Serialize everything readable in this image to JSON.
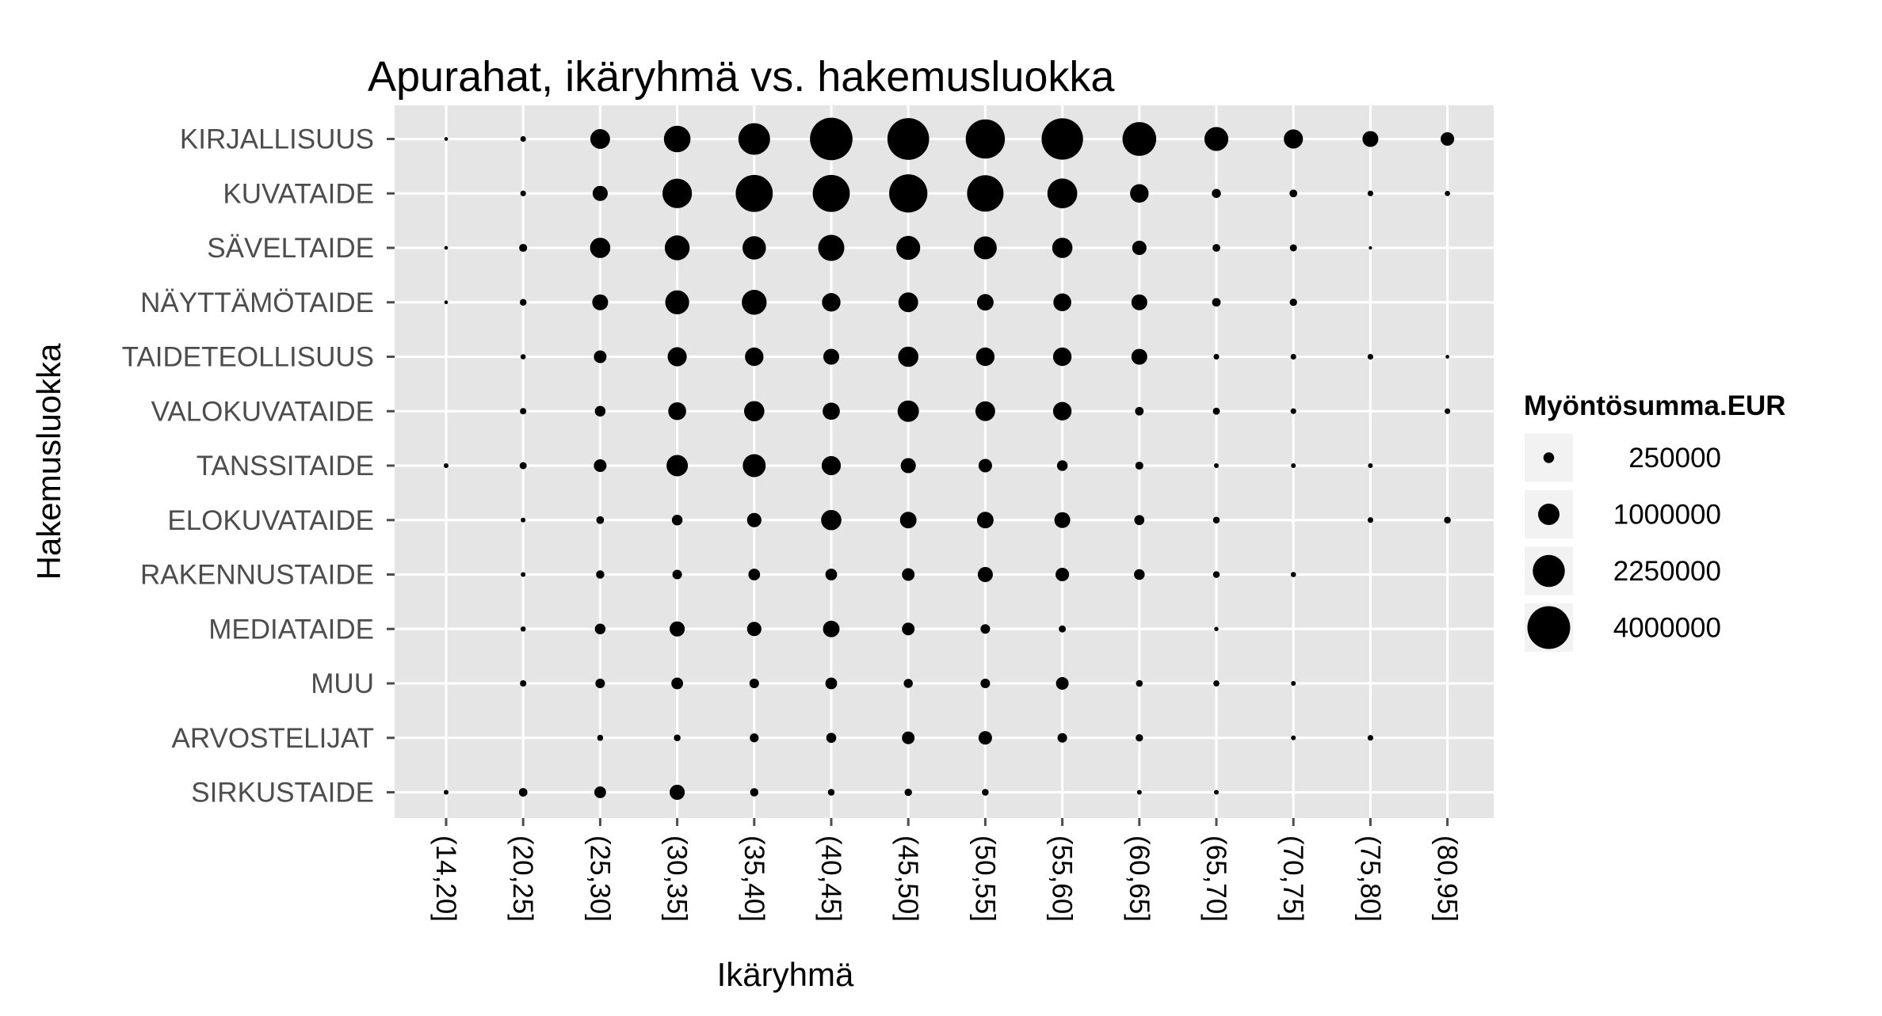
{
  "chart_data": {
    "type": "scatter",
    "title": "Apurahat, ikäryhmä vs. hakemusluokka",
    "xlabel": "Ikäryhmä",
    "ylabel": "Hakemusluokka",
    "x_categories": [
      "(14,20]",
      "(20,25]",
      "(25,30]",
      "(30,35]",
      "(35,40]",
      "(40,45]",
      "(45,50]",
      "(50,55]",
      "(55,60]",
      "(60,65]",
      "(65,70]",
      "(70,75]",
      "(75,80]",
      "(80,95]"
    ],
    "y_categories": [
      "KIRJALLISUUS",
      "KUVATAIDE",
      "SÄVELTAIDE",
      "NÄYTTÄMÖTAIDE",
      "TAIDETEOLLISUUS",
      "VALOKUVATAIDE",
      "TANSSITAIDE",
      "ELOKUVATAIDE",
      "RAKENNUSTAIDE",
      "MEDIATAIDE",
      "MUU",
      "ARVOSTELIJAT",
      "SIRKUSTAIDE"
    ],
    "size_variable": "Myöntösumma.EUR",
    "size_legend": {
      "title": "Myöntösumma.EUR",
      "values": [
        250000,
        1000000,
        2250000,
        4000000
      ],
      "labels": [
        "250000",
        "1000000",
        "2250000",
        "4000000"
      ]
    },
    "grid": true,
    "legend_position": "right",
    "point_color": "#000000",
    "panel_background": "#e5e5e5",
    "gridline_color": "#ffffff",
    "values": [
      [
        30000,
        70000,
        850000,
        1550000,
        2200000,
        3950000,
        3800000,
        3350000,
        3750000,
        2500000,
        1250000,
        800000,
        550000,
        400000
      ],
      [
        0,
        70000,
        500000,
        1900000,
        3000000,
        3000000,
        3200000,
        2900000,
        1950000,
        750000,
        180000,
        130000,
        70000,
        60000
      ],
      [
        30000,
        140000,
        900000,
        1350000,
        1200000,
        1500000,
        1250000,
        1150000,
        900000,
        450000,
        130000,
        110000,
        25000,
        0
      ],
      [
        30000,
        100000,
        550000,
        1250000,
        1350000,
        750000,
        850000,
        600000,
        700000,
        550000,
        160000,
        120000,
        0,
        0
      ],
      [
        0,
        60000,
        350000,
        800000,
        750000,
        550000,
        900000,
        750000,
        750000,
        550000,
        70000,
        70000,
        70000,
        30000
      ],
      [
        0,
        90000,
        250000,
        700000,
        900000,
        650000,
        1000000,
        850000,
        750000,
        160000,
        110000,
        70000,
        0,
        70000
      ],
      [
        50000,
        110000,
        350000,
        1000000,
        1150000,
        800000,
        500000,
        400000,
        250000,
        140000,
        50000,
        50000,
        50000,
        0
      ],
      [
        0,
        50000,
        130000,
        250000,
        450000,
        900000,
        600000,
        600000,
        550000,
        220000,
        100000,
        0,
        70000,
        100000
      ],
      [
        0,
        50000,
        150000,
        200000,
        300000,
        300000,
        350000,
        500000,
        400000,
        250000,
        100000,
        60000,
        0,
        0
      ],
      [
        0,
        60000,
        250000,
        500000,
        450000,
        600000,
        350000,
        200000,
        110000,
        0,
        40000,
        0,
        0,
        0
      ],
      [
        0,
        90000,
        200000,
        300000,
        200000,
        300000,
        180000,
        200000,
        350000,
        100000,
        80000,
        50000,
        0,
        0
      ],
      [
        0,
        0,
        80000,
        100000,
        170000,
        220000,
        350000,
        400000,
        200000,
        120000,
        0,
        50000,
        70000,
        0
      ],
      [
        50000,
        160000,
        300000,
        500000,
        150000,
        100000,
        120000,
        100000,
        0,
        50000,
        50000,
        0,
        0,
        0
      ]
    ]
  }
}
